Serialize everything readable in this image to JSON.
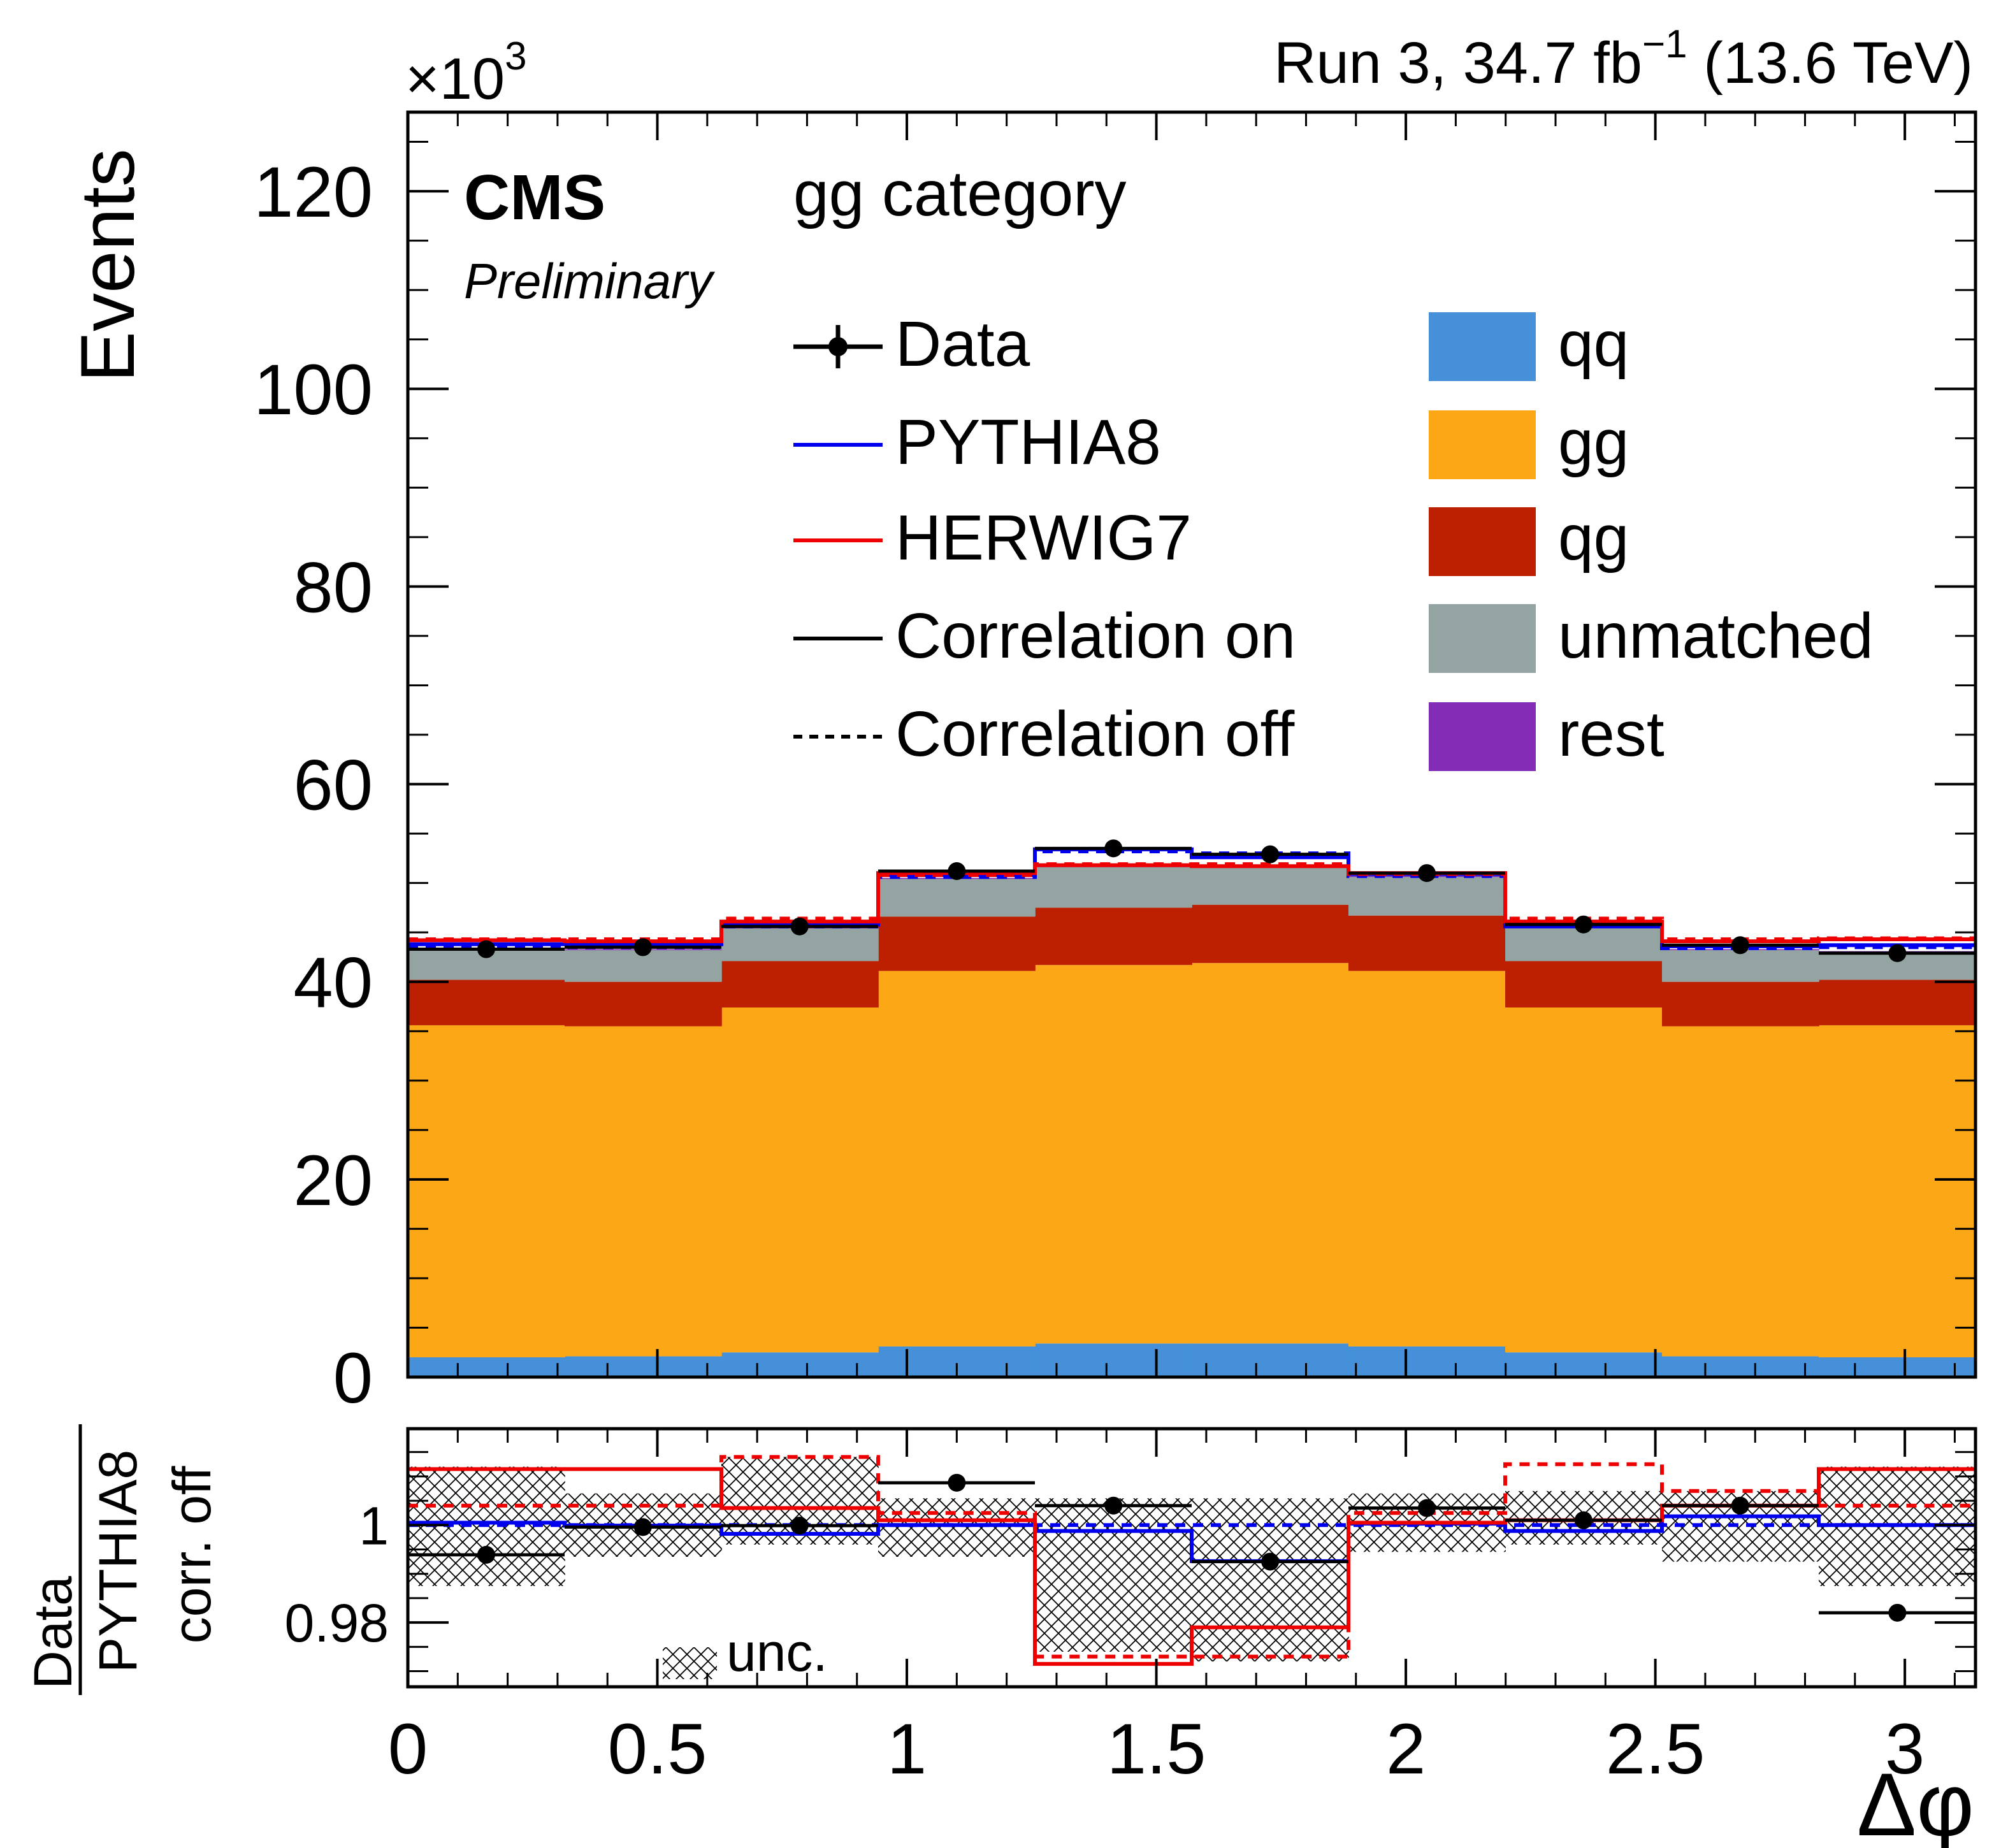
{
  "header": {
    "multiplier_base": "×10",
    "multiplier_exp": "3",
    "lumi_prefix": "Run 3, 34.7 fb",
    "lumi_exp": "−1",
    "lumi_suffix": " (13.6 TeV)",
    "experiment": "CMS",
    "status": "Preliminary",
    "category": "gg category"
  },
  "axes": {
    "upper_ylabel": "Events",
    "ratio_ylabel_num": "Data",
    "ratio_ylabel_den": "PYTHIA8",
    "ratio_ylabel_sub": "corr. off",
    "xlabel": "Δφ",
    "x_ticks": [
      "0",
      "0.5",
      "1",
      "1.5",
      "2",
      "2.5",
      "3"
    ],
    "x_tick_values": [
      0,
      0.5,
      1,
      1.5,
      2,
      2.5,
      3
    ],
    "upper_y_ticks": [
      "0",
      "20",
      "40",
      "60",
      "80",
      "100",
      "120"
    ],
    "upper_y_tick_values": [
      0,
      20,
      40,
      60,
      80,
      100,
      120
    ],
    "ratio_y_ticks": [
      "0.98",
      "1"
    ],
    "ratio_y_tick_values": [
      0.98,
      1.0
    ]
  },
  "legend": {
    "lines": [
      {
        "key": "data",
        "label": "Data"
      },
      {
        "key": "pythia",
        "label": "PYTHIA8"
      },
      {
        "key": "herwig",
        "label": "HERWIG7"
      },
      {
        "key": "corr_on",
        "label": "Correlation on"
      },
      {
        "key": "corr_off",
        "label": "Correlation off"
      }
    ],
    "fills": [
      {
        "key": "qq",
        "label": "qq"
      },
      {
        "key": "gg",
        "label": "gg"
      },
      {
        "key": "qg",
        "label": "qg"
      },
      {
        "key": "unmatched",
        "label": "unmatched"
      },
      {
        "key": "rest",
        "label": "rest"
      }
    ],
    "unc_label": "unc."
  },
  "colors": {
    "qq": "#4590d8",
    "gg": "#fca816",
    "qg": "#bd2000",
    "unmatched": "#94a4a2",
    "rest": "#832cb5",
    "pythia": "#0000ee",
    "herwig": "#ee0000",
    "data": "#000000"
  },
  "chart_data": [
    {
      "type": "bar",
      "stacked": true,
      "title": "gg category",
      "xlabel": "Δφ",
      "ylabel": "Events",
      "y_scale": 1000,
      "xlim": [
        0,
        3.14159
      ],
      "ylim": [
        0,
        128
      ],
      "bin_edges": [
        0,
        0.31416,
        0.62832,
        0.94248,
        1.25664,
        1.5708,
        1.88496,
        2.19911,
        2.51327,
        2.82743,
        3.14159
      ],
      "series": [
        {
          "name": "qq",
          "values": [
            2.0,
            2.1,
            2.5,
            3.1,
            3.4,
            3.4,
            3.1,
            2.5,
            2.1,
            2.0
          ]
        },
        {
          "name": "gg",
          "values": [
            33.6,
            33.4,
            34.9,
            38.0,
            38.3,
            38.5,
            38.0,
            34.9,
            33.4,
            33.6
          ]
        },
        {
          "name": "qg",
          "values": [
            4.6,
            4.5,
            4.7,
            5.5,
            5.8,
            5.9,
            5.6,
            4.7,
            4.5,
            4.6
          ]
        },
        {
          "name": "unmatched",
          "values": [
            3.0,
            3.2,
            3.3,
            3.8,
            4.1,
            3.9,
            3.9,
            3.4,
            3.2,
            2.8
          ]
        },
        {
          "name": "rest",
          "values": [
            0.1,
            0.1,
            0.1,
            0.1,
            0.1,
            0.1,
            0.1,
            0.1,
            0.1,
            0.1
          ]
        }
      ],
      "model_lines": [
        {
          "name": "PYTHIA8 correlation on",
          "values": [
            43.8,
            43.8,
            45.8,
            50.8,
            53.4,
            52.6,
            50.9,
            45.6,
            43.6,
            43.7
          ]
        },
        {
          "name": "PYTHIA8 correlation off",
          "values": [
            43.6,
            43.5,
            45.6,
            50.6,
            53.2,
            53.0,
            50.7,
            45.8,
            43.4,
            43.5
          ]
        },
        {
          "name": "HERWIG7 correlation on",
          "values": [
            44.2,
            44.1,
            46.1,
            51.0,
            51.8,
            51.7,
            51.0,
            46.1,
            44.1,
            44.3
          ]
        },
        {
          "name": "HERWIG7 correlation off",
          "values": [
            44.3,
            44.3,
            46.4,
            50.8,
            51.9,
            51.9,
            50.9,
            46.4,
            44.3,
            44.4
          ]
        }
      ],
      "data_points": {
        "x": [
          0.157,
          0.471,
          0.785,
          1.1,
          1.414,
          1.728,
          2.042,
          2.356,
          2.67,
          2.985
        ],
        "y": [
          43.3,
          43.5,
          45.6,
          51.2,
          53.5,
          52.9,
          51.0,
          45.8,
          43.7,
          42.9
        ]
      }
    },
    {
      "type": "line",
      "title": "Data / PYTHIA8 corr. off",
      "xlabel": "Δφ",
      "ylabel": "Data / PYTHIA8 corr. off",
      "xlim": [
        0,
        3.14159
      ],
      "ylim": [
        0.9668,
        1.0198
      ],
      "bin_edges": [
        0,
        0.31416,
        0.62832,
        0.94248,
        1.25664,
        1.5708,
        1.88496,
        2.19911,
        2.51327,
        2.82743,
        3.14159
      ],
      "unc_low": [
        0.9875,
        0.9935,
        0.996,
        0.9935,
        0.974,
        0.972,
        0.9945,
        0.996,
        0.9925,
        0.9875
      ],
      "unc_high": [
        1.012,
        1.0065,
        1.014,
        1.0055,
        1.0055,
        1.0055,
        1.0065,
        1.007,
        1.007,
        1.012
      ],
      "series": [
        {
          "name": "PYTHIA8 corr. on",
          "values": [
            1.0005,
            0.9999,
            0.9982,
            1.0,
            0.9988,
            0.9926,
            1.0003,
            0.9988,
            1.0018,
            1.0
          ]
        },
        {
          "name": "PYTHIA8 corr. off",
          "values": [
            1.0,
            1.0,
            1.0,
            1.0,
            1.0,
            1.0,
            1.0,
            1.0,
            1.0,
            1.0
          ]
        },
        {
          "name": "HERWIG7 corr. on",
          "values": [
            1.0115,
            1.0115,
            1.0035,
            1.001,
            0.9715,
            0.979,
            1.0005,
            1.001,
            1.004,
            1.0115
          ]
        },
        {
          "name": "HERWIG7 corr. off",
          "values": [
            1.004,
            1.004,
            1.014,
            1.0025,
            0.973,
            0.973,
            1.0025,
            1.0125,
            1.007,
            1.004
          ]
        }
      ],
      "data_points": {
        "x": [
          0.157,
          0.471,
          0.785,
          1.1,
          1.414,
          1.728,
          2.042,
          2.356,
          2.67,
          2.985
        ],
        "y": [
          0.9939,
          0.9996,
          0.9999,
          1.0087,
          1.004,
          0.9925,
          1.0035,
          1.001,
          1.004,
          0.982
        ],
        "yerr": [
          0.0017,
          0.0017,
          0.0017,
          0.0017,
          0.0017,
          0.0017,
          0.0017,
          0.0017,
          0.0017,
          0.0017
        ]
      }
    }
  ]
}
